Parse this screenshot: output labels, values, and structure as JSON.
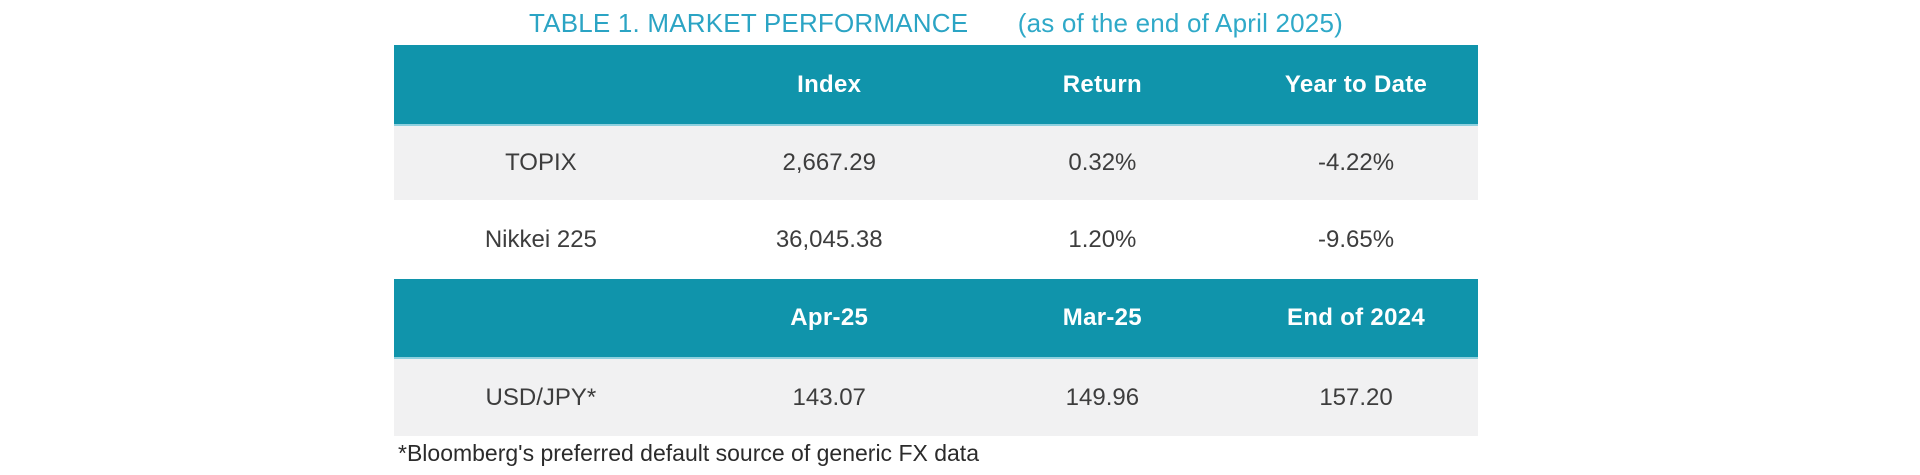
{
  "title": {
    "main": "TABLE 1. MARKET PERFORMANCE",
    "sub": "(as of the end of April 2025)"
  },
  "colors": {
    "header_band": "#1094ab",
    "title_teal": "#2ba4c4",
    "shaded_row": "#f1f1f2",
    "body_text": "#3d3d3d"
  },
  "tables": {
    "indices": {
      "headers": [
        "",
        "Index",
        "Return",
        "Year to Date"
      ],
      "rows": [
        {
          "label": "TOPIX",
          "values": [
            "2,667.29",
            "0.32%",
            "-4.22%"
          ]
        },
        {
          "label": "Nikkei 225",
          "values": [
            "36,045.38",
            "1.20%",
            "-9.65%"
          ]
        }
      ]
    },
    "fx": {
      "headers": [
        "",
        "Apr-25",
        "Mar-25",
        "End of 2024"
      ],
      "rows": [
        {
          "label": "USD/JPY*",
          "values": [
            "143.07",
            "149.96",
            "157.20"
          ]
        }
      ]
    }
  },
  "footnote": "*Bloomberg's preferred default source of generic FX data"
}
